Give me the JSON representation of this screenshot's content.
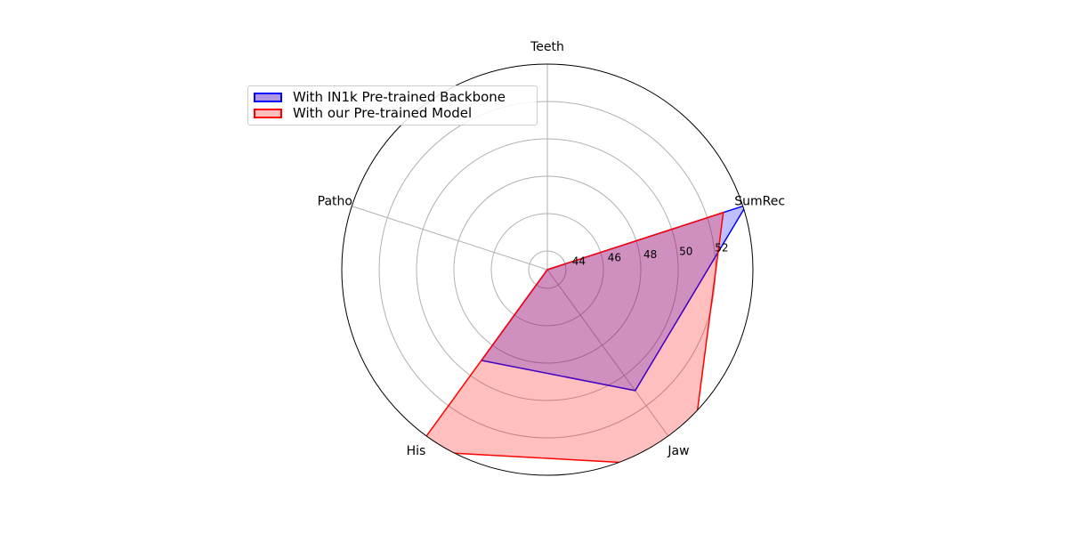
{
  "chart_data": {
    "type": "radar",
    "categories": [
      "Teeth",
      "SumRec",
      "Jaw",
      "His",
      "Patho"
    ],
    "rlim": [
      43,
      54
    ],
    "rticks": [
      44,
      46,
      48,
      50,
      52
    ],
    "grid": true,
    "legend_position": "upper-left",
    "series": [
      {
        "name": "With IN1k Pre-trained Backbone",
        "values": [
          43,
          54.2,
          51.0,
          49.0,
          43
        ],
        "line_color": "#0000ff",
        "fill_color": "#0000ff",
        "fill_alpha": 0.25
      },
      {
        "name": "With our Pre-trained Model",
        "values": [
          43,
          52.9,
          56.0,
          55.0,
          43
        ],
        "line_color": "#ff0000",
        "fill_color": "#ff0000",
        "fill_alpha": 0.25
      }
    ]
  }
}
